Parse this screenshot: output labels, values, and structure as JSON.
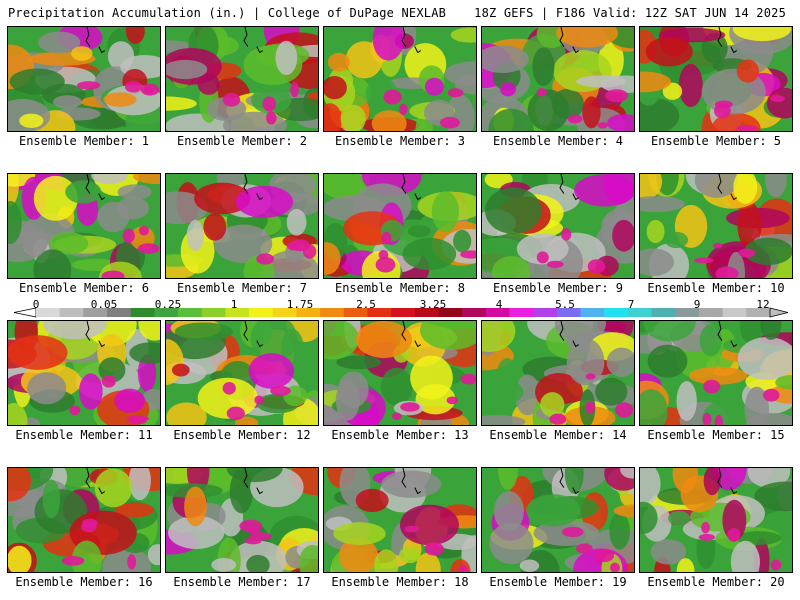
{
  "header": {
    "title": "Precipitation Accumulation (in.) | College of DuPage NEXLAB",
    "run": "18Z GEFS | F186 Valid: 12Z SAT JUN 14 2025"
  },
  "panels": [
    {
      "label": "Ensemble Member: 1"
    },
    {
      "label": "Ensemble Member: 2"
    },
    {
      "label": "Ensemble Member: 3"
    },
    {
      "label": "Ensemble Member: 4"
    },
    {
      "label": "Ensemble Member: 5"
    },
    {
      "label": "Ensemble Member: 6"
    },
    {
      "label": "Ensemble Member: 7"
    },
    {
      "label": "Ensemble Member: 8"
    },
    {
      "label": "Ensemble Member: 9"
    },
    {
      "label": "Ensemble Member: 10"
    },
    {
      "label": "Ensemble Member: 11"
    },
    {
      "label": "Ensemble Member: 12"
    },
    {
      "label": "Ensemble Member: 13"
    },
    {
      "label": "Ensemble Member: 14"
    },
    {
      "label": "Ensemble Member: 15"
    },
    {
      "label": "Ensemble Member: 16"
    },
    {
      "label": "Ensemble Member: 17"
    },
    {
      "label": "Ensemble Member: 18"
    },
    {
      "label": "Ensemble Member: 19"
    },
    {
      "label": "Ensemble Member: 20"
    }
  ],
  "colorbar": {
    "ticks": [
      "0",
      "0.05",
      "0.25",
      "1",
      "1.75",
      "2.5",
      "3.25",
      "4",
      "5.5",
      "7",
      "9",
      "12"
    ],
    "colors": [
      "#d9d9d9",
      "#bdbdbd",
      "#9e9e9e",
      "#808080",
      "#2e8b2e",
      "#3fa33f",
      "#59bf3b",
      "#8ccf2a",
      "#c8e21e",
      "#f2f21a",
      "#f7d21a",
      "#f5b014",
      "#f08a10",
      "#ea5e12",
      "#e33012",
      "#d4111b",
      "#b8081a",
      "#950616",
      "#b0065e",
      "#d20aa0",
      "#e81ee0",
      "#b23fe8",
      "#7c6cf0",
      "#4fb3f0",
      "#22e0f0",
      "#3fd0d0",
      "#4fb0b0",
      "#8a9a9a",
      "#a8a8a8",
      "#c8c8c8",
      "#b0b0b0"
    ]
  }
}
